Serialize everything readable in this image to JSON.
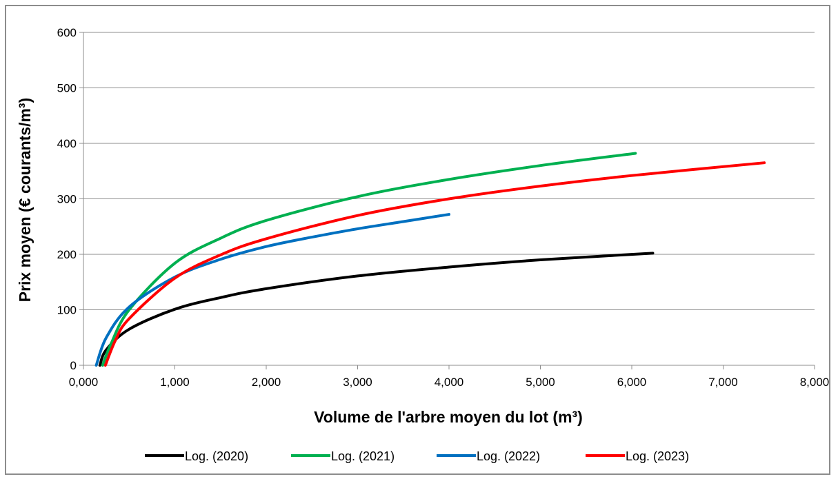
{
  "chart_data": {
    "type": "line",
    "title": "",
    "xlabel": "Volume de l'arbre moyen du lot (m³)",
    "ylabel": "Prix moyen (€ courants/m³)",
    "xlim": [
      0,
      8
    ],
    "ylim": [
      0,
      600
    ],
    "x_ticks": [
      0,
      1,
      2,
      3,
      4,
      5,
      6,
      7,
      8
    ],
    "x_tick_labels": [
      "0,000",
      "1,000",
      "2,000",
      "3,000",
      "4,000",
      "5,000",
      "6,000",
      "7,000",
      "8,000"
    ],
    "y_ticks": [
      0,
      100,
      200,
      300,
      400,
      500,
      600
    ],
    "y_tick_labels": [
      "0",
      "100",
      "200",
      "300",
      "400",
      "500",
      "600"
    ],
    "grid": "horizontal",
    "legend_position": "bottom",
    "series": [
      {
        "name": "Log. (2020)",
        "color": "#000000",
        "points": [
          [
            0.18,
            0
          ],
          [
            0.25,
            28
          ],
          [
            0.5,
            65
          ],
          [
            1.0,
            101
          ],
          [
            1.5,
            122
          ],
          [
            2.0,
            138
          ],
          [
            3.0,
            161
          ],
          [
            4.0,
            177
          ],
          [
            5.0,
            190
          ],
          [
            6.23,
            202
          ]
        ]
      },
      {
        "name": "Log. (2021)",
        "color": "#00b050",
        "points": [
          [
            0.21,
            0
          ],
          [
            0.3,
            38
          ],
          [
            0.5,
            100
          ],
          [
            1.0,
            184
          ],
          [
            1.5,
            229
          ],
          [
            2.0,
            261
          ],
          [
            3.0,
            304
          ],
          [
            4.0,
            335
          ],
          [
            5.0,
            360
          ],
          [
            6.04,
            382
          ]
        ]
      },
      {
        "name": "Log. (2022)",
        "color": "#0070c0",
        "points": [
          [
            0.14,
            0
          ],
          [
            0.25,
            50
          ],
          [
            0.5,
            105
          ],
          [
            1.0,
            159
          ],
          [
            1.5,
            191
          ],
          [
            2.0,
            214
          ],
          [
            2.5,
            231
          ],
          [
            3.0,
            246
          ],
          [
            3.5,
            259
          ],
          [
            4.0,
            272
          ]
        ]
      },
      {
        "name": "Log. (2023)",
        "color": "#ff0000",
        "points": [
          [
            0.24,
            0
          ],
          [
            0.35,
            45
          ],
          [
            0.5,
            84
          ],
          [
            1.0,
            157
          ],
          [
            1.5,
            199
          ],
          [
            2.0,
            228
          ],
          [
            3.0,
            270
          ],
          [
            4.0,
            300
          ],
          [
            5.0,
            323
          ],
          [
            6.0,
            342
          ],
          [
            7.45,
            365
          ]
        ]
      }
    ]
  }
}
